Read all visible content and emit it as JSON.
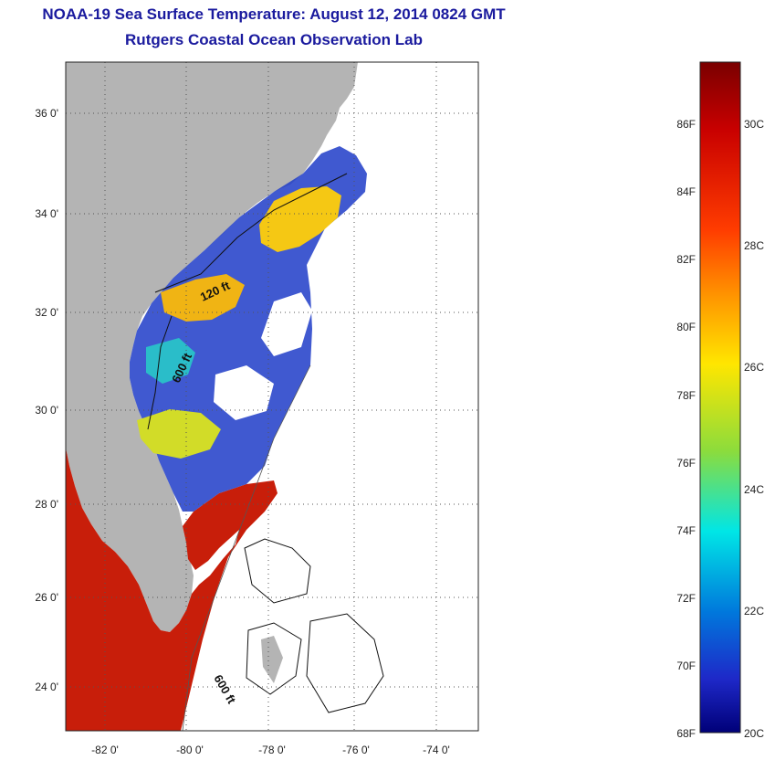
{
  "header": {
    "title_line1": "NOAA-19 Sea Surface Temperature:  August 12, 2014 0824 GMT",
    "title_line2": "Rutgers Coastal Ocean Observation Lab"
  },
  "map": {
    "lat_ticks": [
      "24 0'",
      "26 0'",
      "28 0'",
      "30 0'",
      "32 0'",
      "34 0'",
      "36 0'"
    ],
    "lon_ticks": [
      "-82 0'",
      "-80 0'",
      "-78 0'",
      "-76 0'",
      "-74 0'"
    ],
    "contour_labels": [
      "120 ft",
      "600 ft",
      "600 ft"
    ],
    "colors": {
      "land": "#b4b4b4",
      "ocean_no_data": "#ffffff",
      "hot": "#c81e0a",
      "warm": "#f5c814",
      "mild": "#28c8c8",
      "cool": "#1428b4"
    }
  },
  "colorbar": {
    "fahrenheit_labels": [
      "86F",
      "84F",
      "82F",
      "80F",
      "78F",
      "76F",
      "74F",
      "72F",
      "70F",
      "68F"
    ],
    "celsius_labels": [
      "30C",
      "28C",
      "26C",
      "24C",
      "22C",
      "20C"
    ],
    "range_f": [
      68,
      88
    ],
    "range_c": [
      20,
      31
    ]
  }
}
